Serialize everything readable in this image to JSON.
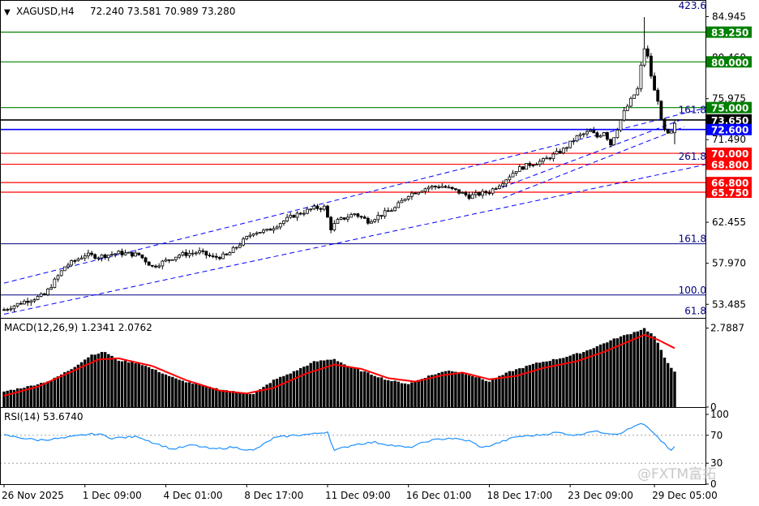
{
  "header": {
    "symbol": "XAGUSD,H4",
    "ohlc": "72.240 73.581 70.989 73.280",
    "arrow": "▼"
  },
  "watermark": "@FXTM富拓",
  "chart_data": {
    "type": "candlestick",
    "price_axis": {
      "ylim": [
        52.0,
        86.5
      ],
      "ticks": [
        84.945,
        80.46,
        75.975,
        71.49,
        62.455,
        57.97,
        53.485
      ],
      "tick_labels": [
        "84.945",
        "80.460",
        "75.975",
        "71.490",
        "62.455",
        "57.970",
        "53.485"
      ]
    },
    "levels": [
      {
        "value": 83.25,
        "label": "83.250",
        "color": "#008000"
      },
      {
        "value": 80.0,
        "label": "80.000",
        "color": "#008000"
      },
      {
        "value": 75.0,
        "label": "75.000",
        "color": "#008000"
      },
      {
        "value": 73.65,
        "label": "73.650",
        "color": "#000000"
      },
      {
        "value": 72.6,
        "label": "72.600",
        "color": "#0000ff"
      },
      {
        "value": 70.0,
        "label": "70.000",
        "color": "#ff0000"
      },
      {
        "value": 68.8,
        "label": "68.800",
        "color": "#ff0000"
      },
      {
        "value": 66.8,
        "label": "66.800",
        "color": "#ff0000"
      },
      {
        "value": 65.75,
        "label": "65.750",
        "color": "#ff0000"
      }
    ],
    "fib_levels": [
      {
        "value": 85.6,
        "label": "423.6"
      },
      {
        "value": 74.2,
        "label": "161.8"
      },
      {
        "value": 69.1,
        "label": "261.8"
      },
      {
        "value": 60.1,
        "label": "161.8"
      },
      {
        "value": 54.5,
        "label": "100.0"
      },
      {
        "value": 52.2,
        "label": "61.8"
      }
    ],
    "fib_line_values": [
      60.1,
      54.5
    ],
    "price_anchors": [
      [
        0,
        52.9
      ],
      [
        6,
        53.8
      ],
      [
        12,
        54.5
      ],
      [
        18,
        57.6
      ],
      [
        24,
        58.9
      ],
      [
        28,
        58.7
      ],
      [
        34,
        59.1
      ],
      [
        40,
        58.9
      ],
      [
        44,
        57.6
      ],
      [
        52,
        58.9
      ],
      [
        58,
        59.2
      ],
      [
        62,
        58.6
      ],
      [
        66,
        58.8
      ],
      [
        70,
        60.1
      ],
      [
        74,
        61.4
      ],
      [
        78,
        61.5
      ],
      [
        82,
        62.4
      ],
      [
        86,
        63.2
      ],
      [
        92,
        64.0
      ],
      [
        95,
        64.1
      ],
      [
        97,
        61.8
      ],
      [
        99,
        62.6
      ],
      [
        104,
        63.4
      ],
      [
        108,
        62.6
      ],
      [
        112,
        63.3
      ],
      [
        116,
        64.0
      ],
      [
        120,
        65.5
      ],
      [
        126,
        66.3
      ],
      [
        130,
        66.4
      ],
      [
        134,
        65.9
      ],
      [
        138,
        65.3
      ],
      [
        144,
        65.8
      ],
      [
        148,
        66.9
      ],
      [
        152,
        68.2
      ],
      [
        156,
        68.8
      ],
      [
        160,
        69.2
      ],
      [
        166,
        70.4
      ],
      [
        170,
        71.8
      ],
      [
        174,
        72.4
      ],
      [
        176,
        71.8
      ],
      [
        178,
        72.4
      ],
      [
        180,
        71.0
      ],
      [
        184,
        74.5
      ],
      [
        186,
        75.8
      ],
      [
        188,
        77.0
      ],
      [
        189,
        79.5
      ],
      [
        190,
        81.5
      ],
      [
        191,
        80.5
      ],
      [
        192,
        78.5
      ],
      [
        193,
        76.8
      ],
      [
        194,
        75.9
      ],
      [
        195,
        73.5
      ],
      [
        196,
        72.5
      ],
      [
        197,
        72.0
      ],
      [
        198,
        72.3
      ],
      [
        199,
        73.3
      ]
    ],
    "candle_count": 200,
    "last_candle": {
      "open": 72.24,
      "high": 73.581,
      "low": 70.989,
      "close": 73.28
    },
    "spike_candle": {
      "index": 190,
      "high": 84.9
    },
    "channel": {
      "upper": [
        [
          0,
          55.8
        ],
        [
          199,
          74.1
        ]
      ],
      "lower": [
        [
          0,
          52.4
        ],
        [
          199,
          68.4
        ]
      ],
      "upper_color": "#0000ff",
      "lower_color": "#0000ff"
    },
    "recent_channel": {
      "upper": [
        [
          148,
          66.3
        ],
        [
          199,
          73.8
        ]
      ],
      "lower": [
        [
          148,
          65.1
        ],
        [
          199,
          72.9
        ]
      ]
    },
    "time_axis": {
      "labels": [
        "26 Nov 2025",
        "1 Dec 09:00",
        "4 Dec 01:00",
        "8 Dec 17:00",
        "11 Dec 09:00",
        "16 Dec 01:00",
        "18 Dec 17:00",
        "23 Dec 09:00",
        "29 Dec 05:00"
      ],
      "label_candles": [
        0,
        24,
        48,
        72,
        96,
        120,
        144,
        168,
        193
      ]
    },
    "macd": {
      "label": "MACD(12,26,9) 1.2341 2.0762",
      "ylim": [
        0.0,
        2.95
      ],
      "ticks": [
        2.7887,
        0.0
      ],
      "tick_labels": [
        "2.7887",
        "0"
      ],
      "hist_anchors": [
        [
          0,
          0.55
        ],
        [
          8,
          0.75
        ],
        [
          14,
          0.95
        ],
        [
          20,
          1.35
        ],
        [
          26,
          1.85
        ],
        [
          30,
          1.95
        ],
        [
          34,
          1.65
        ],
        [
          40,
          1.55
        ],
        [
          46,
          1.25
        ],
        [
          52,
          0.95
        ],
        [
          60,
          0.72
        ],
        [
          68,
          0.55
        ],
        [
          74,
          0.45
        ],
        [
          80,
          0.95
        ],
        [
          86,
          1.25
        ],
        [
          92,
          1.6
        ],
        [
          98,
          1.7
        ],
        [
          102,
          1.45
        ],
        [
          108,
          1.2
        ],
        [
          114,
          0.95
        ],
        [
          120,
          0.82
        ],
        [
          126,
          1.1
        ],
        [
          132,
          1.3
        ],
        [
          138,
          1.15
        ],
        [
          144,
          0.9
        ],
        [
          150,
          1.25
        ],
        [
          158,
          1.55
        ],
        [
          166,
          1.75
        ],
        [
          172,
          1.95
        ],
        [
          178,
          2.25
        ],
        [
          182,
          2.45
        ],
        [
          186,
          2.6
        ],
        [
          190,
          2.78
        ],
        [
          193,
          2.5
        ],
        [
          196,
          1.75
        ],
        [
          199,
          1.23
        ]
      ],
      "signal_anchors": [
        [
          0,
          0.4
        ],
        [
          10,
          0.72
        ],
        [
          20,
          1.25
        ],
        [
          28,
          1.68
        ],
        [
          34,
          1.72
        ],
        [
          44,
          1.45
        ],
        [
          54,
          0.95
        ],
        [
          64,
          0.58
        ],
        [
          72,
          0.48
        ],
        [
          80,
          0.68
        ],
        [
          90,
          1.2
        ],
        [
          98,
          1.5
        ],
        [
          106,
          1.35
        ],
        [
          114,
          1.02
        ],
        [
          122,
          0.9
        ],
        [
          130,
          1.12
        ],
        [
          136,
          1.22
        ],
        [
          144,
          0.98
        ],
        [
          152,
          1.1
        ],
        [
          160,
          1.38
        ],
        [
          170,
          1.62
        ],
        [
          178,
          1.95
        ],
        [
          184,
          2.25
        ],
        [
          190,
          2.55
        ],
        [
          194,
          2.38
        ],
        [
          199,
          2.08
        ]
      ],
      "signal_color": "#ff0000",
      "hist_color": "#000000"
    },
    "rsi": {
      "label": "RSI(14) 53.6740",
      "ylim": [
        0,
        100
      ],
      "ticks": [
        100,
        70,
        30,
        0
      ],
      "tick_labels": [
        "100",
        "70",
        "30",
        "0"
      ],
      "dotted_levels": [
        70,
        30
      ],
      "color": "#1e90ff",
      "anchors": [
        [
          0,
          70
        ],
        [
          10,
          63
        ],
        [
          18,
          66
        ],
        [
          24,
          71
        ],
        [
          28,
          72
        ],
        [
          32,
          66
        ],
        [
          40,
          68
        ],
        [
          44,
          60
        ],
        [
          50,
          50
        ],
        [
          56,
          56
        ],
        [
          62,
          50
        ],
        [
          68,
          53
        ],
        [
          74,
          48
        ],
        [
          80,
          66
        ],
        [
          86,
          70
        ],
        [
          92,
          72
        ],
        [
          96,
          75
        ],
        [
          98,
          48
        ],
        [
          104,
          57
        ],
        [
          110,
          60
        ],
        [
          116,
          55
        ],
        [
          120,
          52
        ],
        [
          126,
          62
        ],
        [
          132,
          66
        ],
        [
          138,
          62
        ],
        [
          142,
          52
        ],
        [
          146,
          58
        ],
        [
          152,
          68
        ],
        [
          158,
          70
        ],
        [
          164,
          74
        ],
        [
          170,
          70
        ],
        [
          174,
          76
        ],
        [
          178,
          74
        ],
        [
          182,
          72
        ],
        [
          186,
          80
        ],
        [
          188,
          86
        ],
        [
          190,
          85
        ],
        [
          192,
          76
        ],
        [
          194,
          66
        ],
        [
          196,
          58
        ],
        [
          198,
          47
        ],
        [
          199,
          54
        ]
      ]
    }
  }
}
